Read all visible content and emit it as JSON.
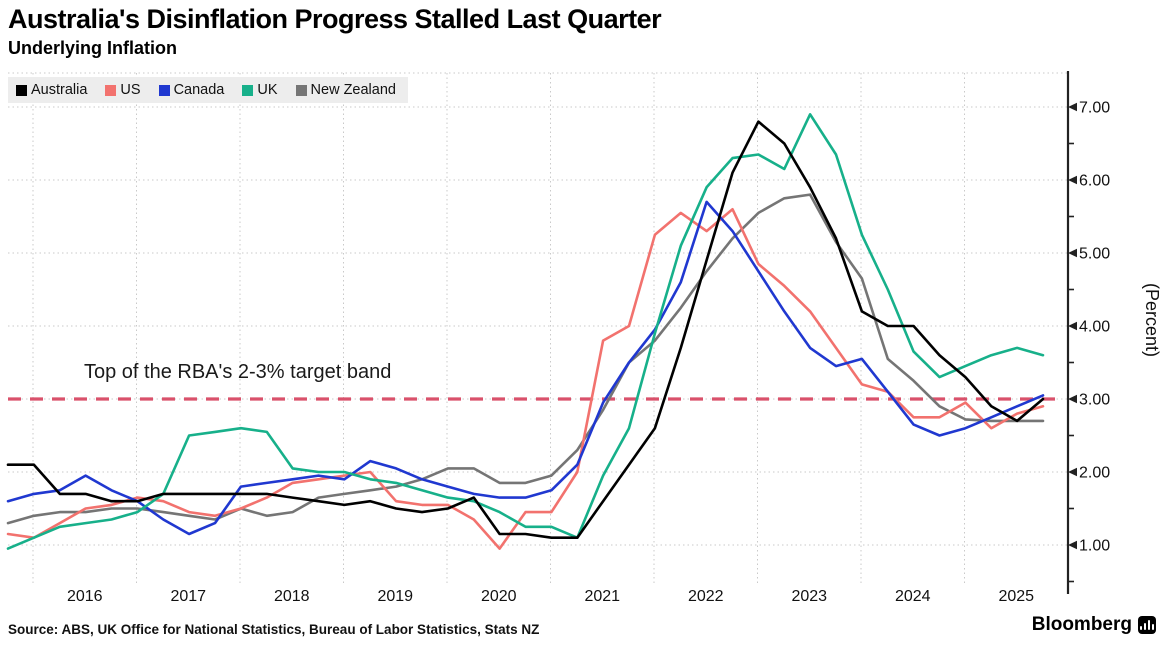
{
  "header": {
    "title": "Australia's Disinflation Progress Stalled Last Quarter",
    "subtitle": "Underlying Inflation"
  },
  "legend": {
    "items": [
      {
        "label": "Australia",
        "color": "#000000"
      },
      {
        "label": "US",
        "color": "#f2726e"
      },
      {
        "label": "Canada",
        "color": "#2038d0"
      },
      {
        "label": "UK",
        "color": "#17b08a"
      },
      {
        "label": "New Zealand",
        "color": "#757575"
      }
    ]
  },
  "annotation": {
    "text": "Top of the RBA's 2-3% target band"
  },
  "axes": {
    "y": {
      "tick_labels": [
        "7.00",
        "6.00",
        "5.00",
        "4.00",
        "3.00",
        "2.00",
        "1.00"
      ],
      "tick_values": [
        7,
        6,
        5,
        4,
        3,
        2,
        1
      ],
      "minor_values": [
        6.5,
        5.5,
        4.5,
        3.5,
        2.5,
        1.5,
        0.5
      ],
      "label": "(Percent)"
    },
    "x": {
      "years": [
        2016,
        2017,
        2018,
        2019,
        2020,
        2021,
        2022,
        2023,
        2024,
        2025
      ]
    }
  },
  "footer": {
    "source": "Source: ABS, UK Office for National Statistics, Bureau of Labor Statistics, Stats NZ",
    "brand": "Bloomberg"
  },
  "colors": {
    "grid": "#c9c9c9",
    "axis": "#222222",
    "ref_line": "#d9516b"
  },
  "chart_data": {
    "type": "line",
    "title": "Australia's Disinflation Progress Stalled Last Quarter",
    "subtitle": "Underlying Inflation",
    "ylabel": "(Percent)",
    "ylim": [
      0.5,
      7.5
    ],
    "y_ticks": [
      1,
      2,
      3,
      4,
      5,
      6,
      7
    ],
    "x_tick_years": [
      2016,
      2017,
      2018,
      2019,
      2020,
      2021,
      2022,
      2023,
      2024,
      2025
    ],
    "frequency": "quarterly",
    "x_start": "2015-Q3",
    "x_end": "2025-Q3",
    "grid": "dotted",
    "legend_position": "top-left",
    "reference_line": {
      "value": 3.0,
      "label": "Top of the RBA's 2-3% target band",
      "style": "dashed"
    },
    "series": [
      {
        "name": "New Zealand",
        "color": "#757575",
        "values": [
          1.3,
          1.4,
          1.45,
          1.45,
          1.5,
          1.5,
          1.45,
          1.4,
          1.35,
          1.5,
          1.4,
          1.45,
          1.65,
          1.7,
          1.75,
          1.8,
          1.9,
          2.05,
          2.05,
          1.85,
          1.85,
          1.95,
          2.3,
          2.85,
          3.5,
          3.8,
          4.25,
          4.75,
          5.2,
          5.55,
          5.75,
          5.8,
          5.15,
          4.65,
          3.55,
          3.25,
          2.9,
          2.72,
          2.7,
          2.7,
          2.7
        ]
      },
      {
        "name": "US",
        "color": "#f2726e",
        "values": [
          1.15,
          1.1,
          1.3,
          1.5,
          1.55,
          1.65,
          1.6,
          1.45,
          1.4,
          1.5,
          1.65,
          1.85,
          1.9,
          1.95,
          2.0,
          1.6,
          1.55,
          1.55,
          1.35,
          0.95,
          1.45,
          1.45,
          2.0,
          3.8,
          4.0,
          5.25,
          5.55,
          5.3,
          5.6,
          4.85,
          4.55,
          4.2,
          3.7,
          3.2,
          3.1,
          2.75,
          2.75,
          2.95,
          2.6,
          2.8,
          2.9
        ]
      },
      {
        "name": "Canada",
        "color": "#2038d0",
        "values": [
          1.6,
          1.7,
          1.75,
          1.95,
          1.75,
          1.6,
          1.35,
          1.15,
          1.3,
          1.8,
          1.85,
          1.9,
          1.95,
          1.9,
          2.15,
          2.05,
          1.9,
          1.8,
          1.7,
          1.65,
          1.65,
          1.75,
          2.1,
          2.95,
          3.5,
          3.95,
          4.6,
          5.7,
          5.3,
          4.75,
          4.2,
          3.7,
          3.45,
          3.55,
          3.1,
          2.65,
          2.5,
          2.6,
          2.75,
          2.9,
          3.05
        ]
      },
      {
        "name": "UK",
        "color": "#17b08a",
        "values": [
          0.95,
          1.1,
          1.25,
          1.3,
          1.35,
          1.45,
          1.7,
          2.5,
          2.55,
          2.6,
          2.55,
          2.05,
          2.0,
          2.0,
          1.9,
          1.85,
          1.75,
          1.65,
          1.6,
          1.45,
          1.25,
          1.25,
          1.1,
          1.95,
          2.6,
          3.9,
          5.1,
          5.9,
          6.3,
          6.35,
          6.15,
          6.9,
          6.35,
          5.25,
          4.5,
          3.65,
          3.3,
          3.45,
          3.6,
          3.7,
          3.6
        ]
      },
      {
        "name": "Australia",
        "color": "#000000",
        "values": [
          2.1,
          2.1,
          1.7,
          1.7,
          1.6,
          1.6,
          1.7,
          1.7,
          1.7,
          1.7,
          1.7,
          1.65,
          1.6,
          1.55,
          1.6,
          1.5,
          1.45,
          1.5,
          1.65,
          1.15,
          1.15,
          1.1,
          1.1,
          1.6,
          2.1,
          2.6,
          3.7,
          4.9,
          6.1,
          6.8,
          6.5,
          5.9,
          5.2,
          4.2,
          4.0,
          4.0,
          3.6,
          3.3,
          2.9,
          2.7,
          3.0
        ]
      }
    ]
  }
}
